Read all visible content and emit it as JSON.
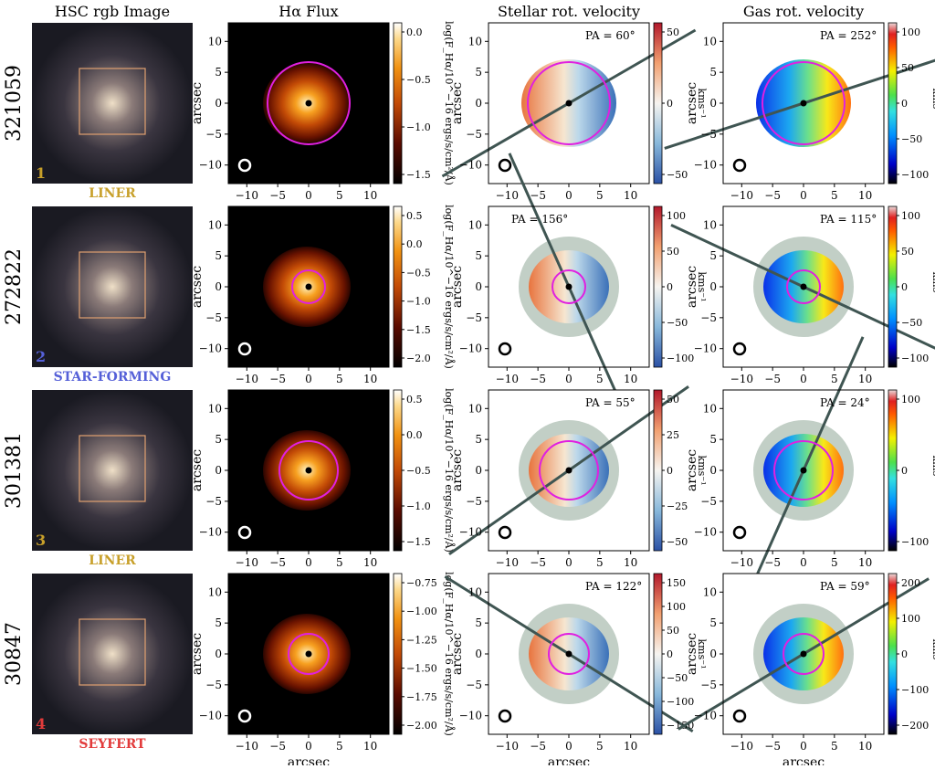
{
  "column_titles": [
    "HSC rgb Image",
    "Hα Flux",
    "Stellar rot. velocity",
    "Gas rot. velocity"
  ],
  "axis_label": "arcsec",
  "xticks": [
    "−10",
    "−5",
    "0",
    "5",
    "10"
  ],
  "yticks": [
    "10",
    "5",
    "0",
    "−5",
    "−10"
  ],
  "flux_cbar_label": "log(F_Hα/10^−16 ergs/s/cm²/Å)",
  "vel_cbar_label": "kms⁻¹",
  "rows": [
    {
      "id": "321059",
      "num": "1",
      "class": "LINER",
      "class_color": "#c8a02a",
      "flux_ticks": [
        "0.0",
        "−0.5",
        "−1.0",
        "−1.5"
      ],
      "stellar_pa": "PA = 60°",
      "stellar_ticks": [
        "50",
        "0",
        "−50"
      ],
      "gas_pa": "PA = 252°",
      "gas_ticks": [
        "100",
        "50",
        "0",
        "−50",
        "−100"
      ]
    },
    {
      "id": "272822",
      "num": "2",
      "class": "STAR-FORMING",
      "class_color": "#5560d8",
      "flux_ticks": [
        "0.5",
        "0.0",
        "−0.5",
        "−1.0",
        "−1.5",
        "−2.0"
      ],
      "stellar_pa": "PA = 156°",
      "stellar_ticks": [
        "100",
        "50",
        "0",
        "−50",
        "−100"
      ],
      "gas_pa": "PA = 115°",
      "gas_ticks": [
        "100",
        "50",
        "0",
        "−50",
        "−100"
      ]
    },
    {
      "id": "301381",
      "num": "3",
      "class": "LINER",
      "class_color": "#c8a02a",
      "flux_ticks": [
        "0.5",
        "0.0",
        "−0.5",
        "−1.0",
        "−1.5"
      ],
      "stellar_pa": "PA = 55°",
      "stellar_ticks": [
        "50",
        "25",
        "0",
        "−25",
        "−50"
      ],
      "gas_pa": "PA = 24°",
      "gas_ticks": [
        "100",
        "0",
        "−100"
      ]
    },
    {
      "id": "30847",
      "num": "4",
      "class": "SEYFERT",
      "class_color": "#e23b3b",
      "flux_ticks": [
        "−0.75",
        "−1.00",
        "−1.25",
        "−1.50",
        "−1.75",
        "−2.00"
      ],
      "stellar_pa": "PA = 122°",
      "stellar_ticks": [
        "150",
        "100",
        "50",
        "0",
        "−50",
        "−100",
        "−150"
      ],
      "gas_pa": "PA = 59°",
      "gas_ticks": [
        "200",
        "100",
        "0",
        "−100",
        "−200"
      ]
    }
  ],
  "colors": {
    "pa_line": "#3f5552",
    "circle": "#e020e0",
    "vel_mask": "#c2cfc6",
    "hsc_box": "#e0a070"
  }
}
